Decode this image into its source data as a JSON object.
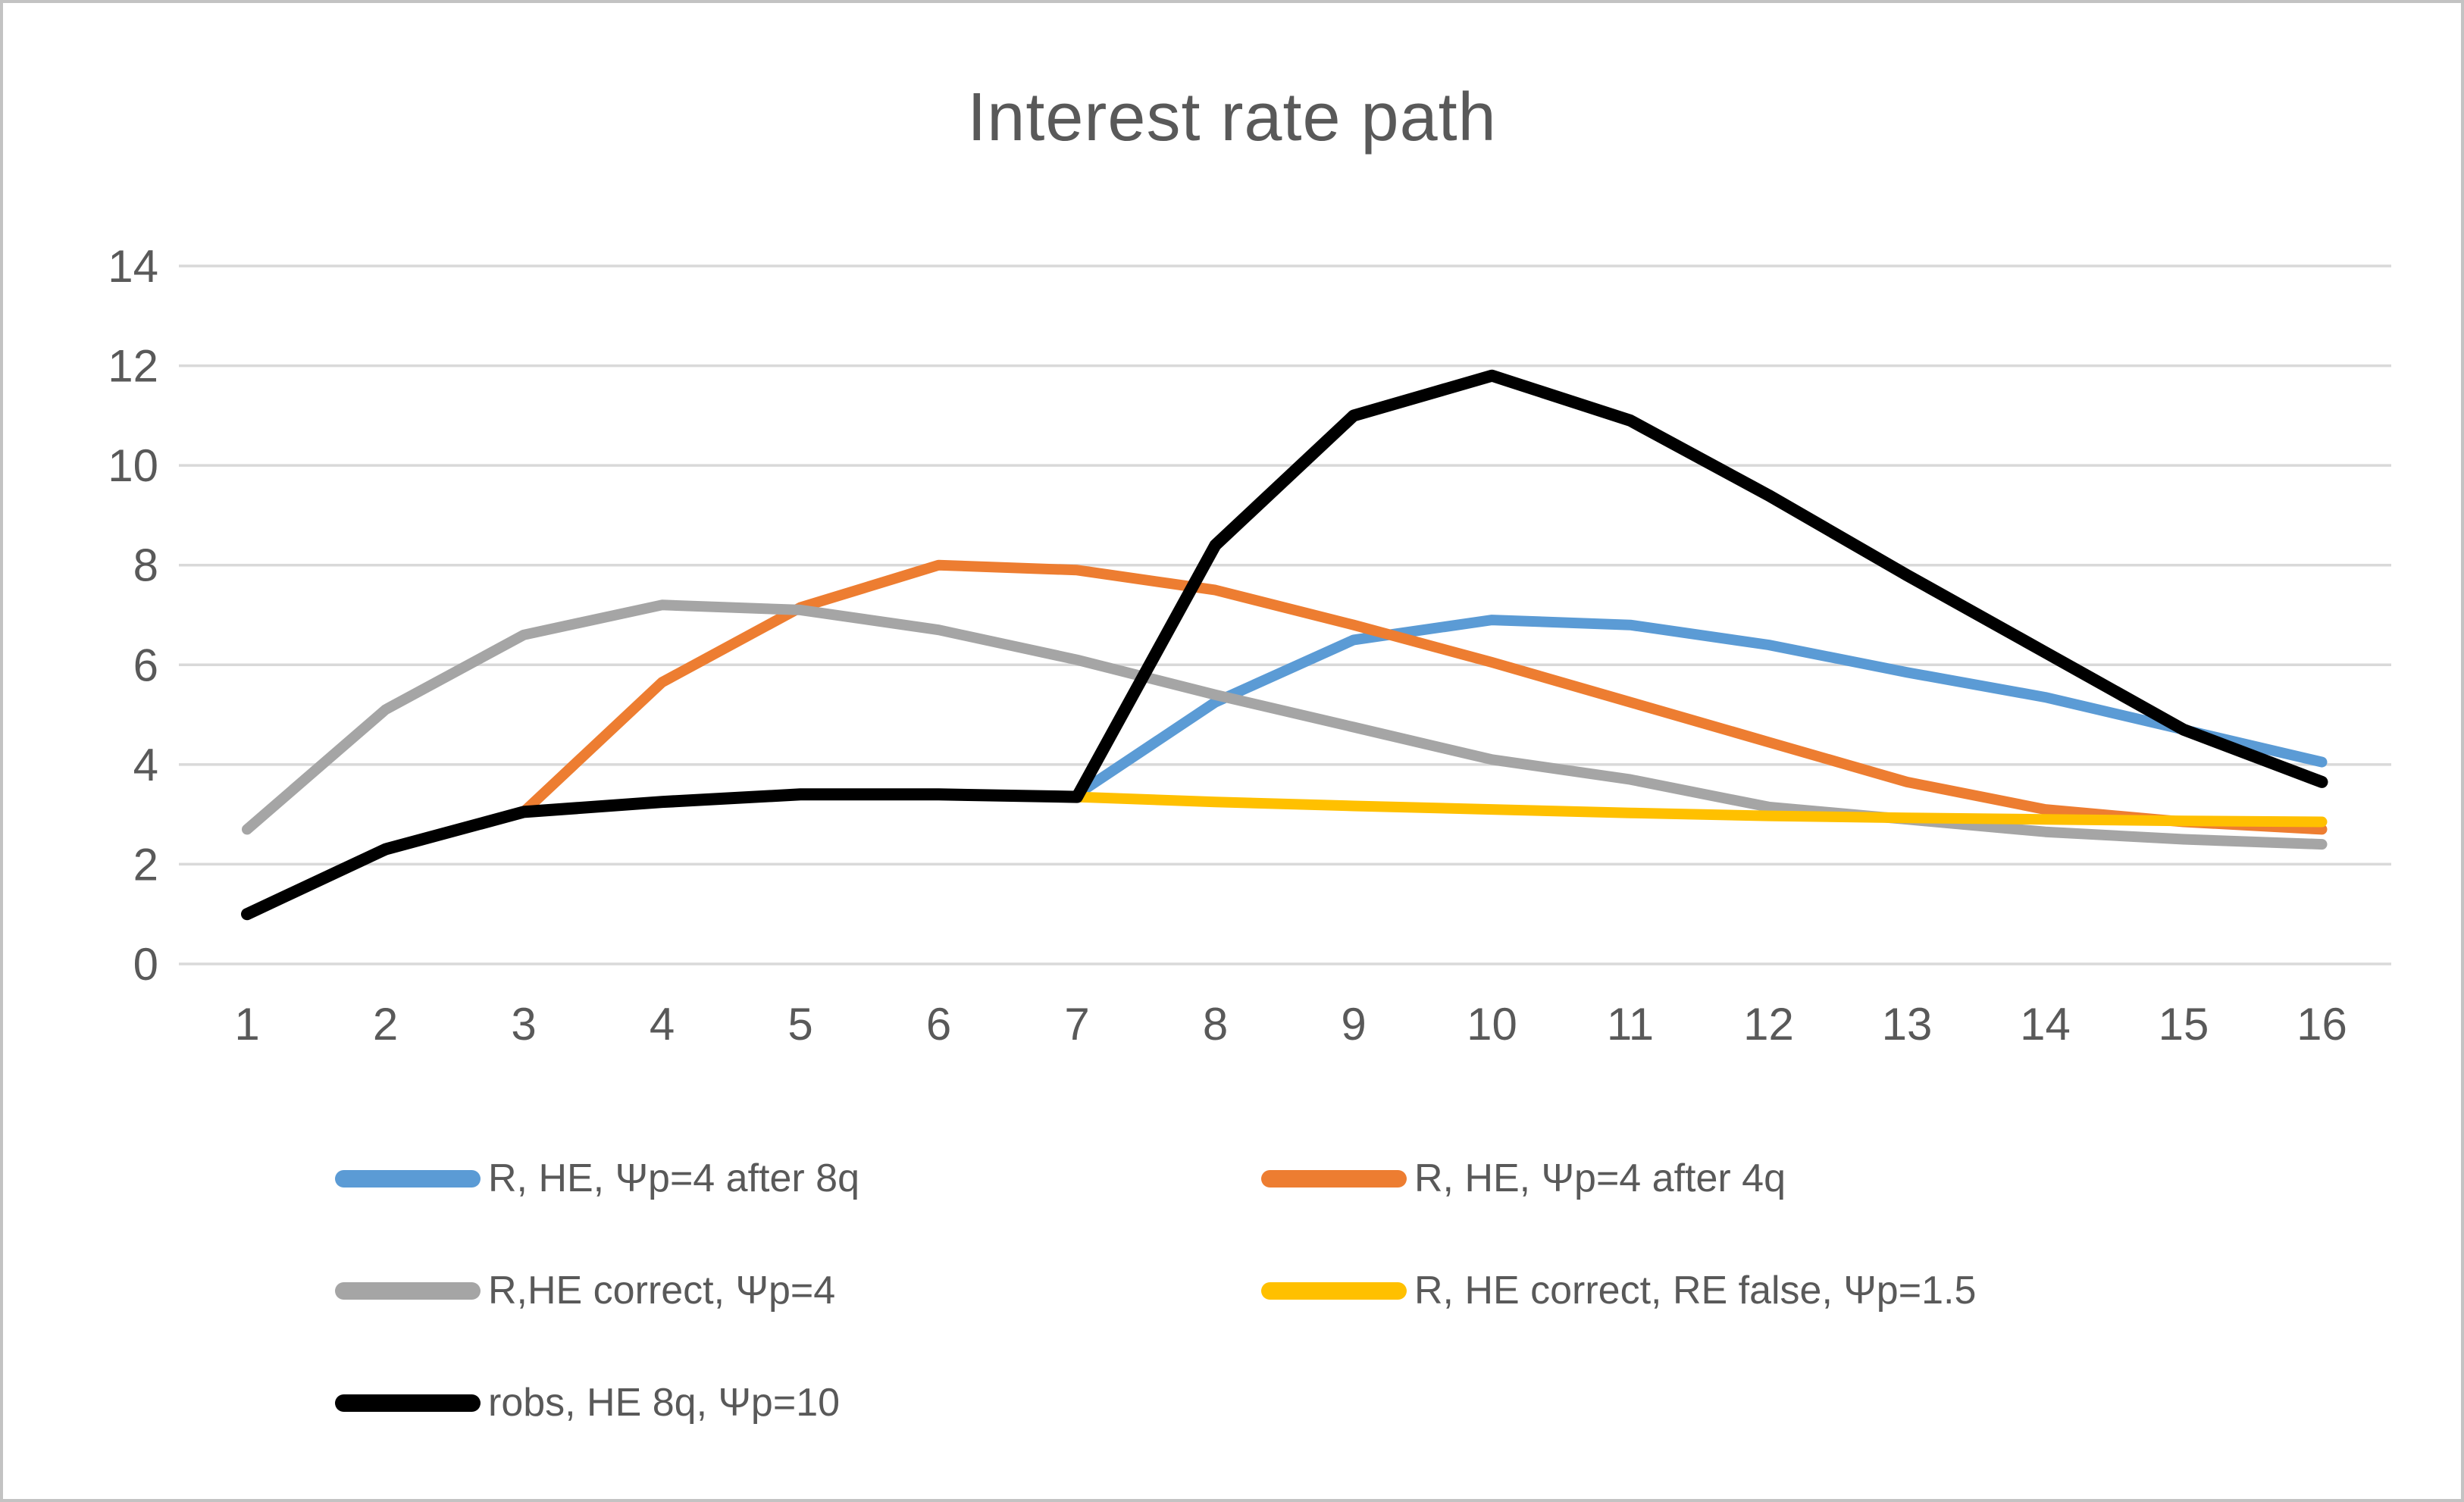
{
  "title": "Interest rate path",
  "colors": {
    "text": "#595959",
    "gridline": "#d9d9d9",
    "background": "#ffffff",
    "border": "#c3c3c3",
    "series_blue": "#5b9bd5",
    "series_orange": "#ed7d31",
    "series_gray": "#a5a5a5",
    "series_yellow": "#ffc000",
    "series_black": "#000000"
  },
  "chart_data": {
    "type": "line",
    "title": "Interest rate path",
    "xlabel": "",
    "ylabel": "",
    "x": [
      1,
      2,
      3,
      4,
      5,
      6,
      7,
      8,
      9,
      10,
      11,
      12,
      13,
      14,
      15,
      16
    ],
    "x_tick_labels": [
      "1",
      "2",
      "3",
      "4",
      "5",
      "6",
      "7",
      "8",
      "9",
      "10",
      "11",
      "12",
      "13",
      "14",
      "15",
      "16"
    ],
    "y_ticks": [
      0,
      2,
      4,
      6,
      8,
      10,
      12,
      14
    ],
    "ylim": [
      0,
      14
    ],
    "grid": true,
    "legend_position": "bottom",
    "series": [
      {
        "name": "R, HE, Ψp=4 after 8q",
        "color": "#5b9bd5",
        "values": [
          null,
          null,
          null,
          null,
          null,
          null,
          3.4,
          5.25,
          6.5,
          6.9,
          6.8,
          6.4,
          5.85,
          5.35,
          4.7,
          4.05
        ]
      },
      {
        "name": "R, HE, Ψp=4 after 4q",
        "color": "#ed7d31",
        "values": [
          null,
          null,
          3.05,
          5.65,
          7.15,
          8.0,
          7.9,
          7.5,
          6.8,
          6.05,
          5.25,
          4.45,
          3.65,
          3.1,
          2.85,
          2.7
        ]
      },
      {
        "name": "R,HE correct, Ψp=4",
        "color": "#a5a5a5",
        "values": [
          2.7,
          5.1,
          6.6,
          7.2,
          7.1,
          6.7,
          6.1,
          5.4,
          4.75,
          4.1,
          3.7,
          3.15,
          2.9,
          2.65,
          2.5,
          2.4
        ]
      },
      {
        "name": "R, HE correct, RE false, Ψp=1.5",
        "color": "#ffc000",
        "values": [
          null,
          null,
          null,
          null,
          null,
          null,
          3.35,
          3.25,
          3.17,
          3.1,
          3.03,
          2.97,
          2.93,
          2.9,
          2.87,
          2.85
        ]
      },
      {
        "name": "robs, HE 8q, Ψp=10",
        "color": "#000000",
        "values": [
          1.0,
          2.3,
          3.05,
          3.25,
          3.4,
          3.4,
          3.35,
          8.4,
          11.0,
          11.8,
          10.9,
          9.4,
          7.8,
          6.25,
          4.7,
          3.65
        ]
      }
    ]
  }
}
